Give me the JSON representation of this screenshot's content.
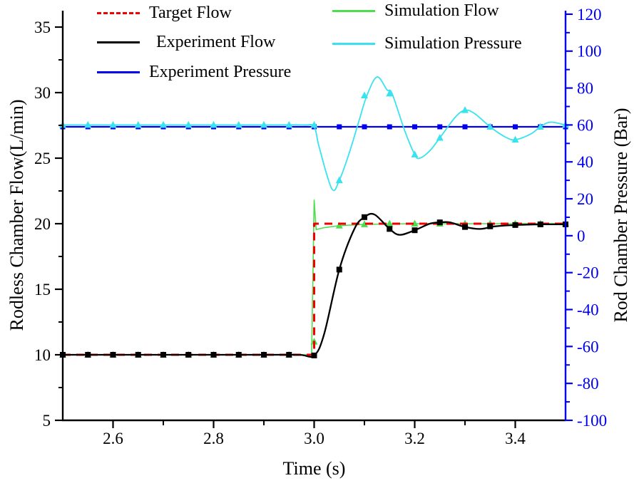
{
  "chart_data": {
    "type": "line",
    "title": "",
    "xlabel": "Time (s)",
    "ylabel_left": "Rodless Chamber Flow(L/min)",
    "ylabel_right": "Rod Chamber Pressure (Bar)",
    "grid": false,
    "legend_position": "top-inside",
    "x_axis": {
      "min": 2.5,
      "max": 3.5,
      "color": "#000000",
      "major_tick_values": [
        2.6,
        2.8,
        3.0,
        3.2,
        3.4
      ],
      "major_tick_labels": [
        "2.6",
        "2.8",
        "3.0",
        "3.2",
        "3.4"
      ],
      "minor_tick_values": [
        2.7,
        2.9,
        3.1,
        3.3
      ]
    },
    "flow_axis": {
      "min": 5,
      "max": 36.25,
      "ticks_min": 5,
      "ticks_max": 35,
      "color": "#000000",
      "major_tick_values": [
        5,
        10,
        15,
        20,
        25,
        30,
        35
      ],
      "major_tick_labels": [
        "5",
        "10",
        "15",
        "20",
        "25",
        "30",
        "35"
      ],
      "minor_tick_values": [
        7.5,
        12.5,
        17.5,
        22.5,
        27.5,
        32.5
      ]
    },
    "pressure_axis": {
      "min": -100,
      "max": 121.9,
      "ticks_min": -100,
      "ticks_max": 120,
      "color": "#0000f0",
      "major_tick_values": [
        120,
        100,
        80,
        60,
        40,
        20,
        0,
        -20,
        -40,
        -60,
        -80,
        -100
      ],
      "major_tick_labels": [
        "120",
        "100",
        "80",
        "60",
        "40",
        "20",
        "0",
        "-20",
        "-40",
        "-60",
        "-80",
        "-100"
      ],
      "minor_tick_values": [
        110,
        90,
        70,
        50,
        30,
        10,
        -10,
        -30,
        -50,
        -70,
        -90
      ]
    },
    "draw_order": [
      2,
      4,
      3,
      0,
      1
    ],
    "series": [
      {
        "name": "Target Flow",
        "axis": "flow",
        "color": "#f20000",
        "dash": true,
        "width": 3,
        "marker": "none",
        "smooth": false,
        "points": [
          [
            2.5,
            10
          ],
          [
            3.0,
            10
          ],
          [
            3.0,
            20
          ],
          [
            3.5,
            20
          ]
        ],
        "markers": []
      },
      {
        "name": "Experiment Flow",
        "axis": "flow",
        "color": "#000000",
        "dash": false,
        "width": 2.3,
        "marker": "square",
        "marker_size": 8,
        "smooth": true,
        "points": [
          [
            2.5,
            10
          ],
          [
            2.7,
            10
          ],
          [
            2.9,
            10
          ],
          [
            2.97,
            10
          ],
          [
            3.0,
            9.95
          ],
          [
            3.02,
            11.6
          ],
          [
            3.05,
            16.5
          ],
          [
            3.08,
            19.6
          ],
          [
            3.1,
            20.5
          ],
          [
            3.12,
            20.7
          ],
          [
            3.15,
            19.6
          ],
          [
            3.17,
            19.15
          ],
          [
            3.2,
            19.5
          ],
          [
            3.23,
            20.0
          ],
          [
            3.25,
            20.1
          ],
          [
            3.27,
            20.1
          ],
          [
            3.3,
            19.75
          ],
          [
            3.33,
            19.6
          ],
          [
            3.36,
            19.8
          ],
          [
            3.4,
            19.9
          ],
          [
            3.45,
            19.95
          ],
          [
            3.5,
            19.95
          ]
        ],
        "markers": [
          [
            2.5,
            10
          ],
          [
            2.55,
            10
          ],
          [
            2.6,
            10
          ],
          [
            2.65,
            10
          ],
          [
            2.7,
            10
          ],
          [
            2.75,
            10
          ],
          [
            2.8,
            10
          ],
          [
            2.85,
            10
          ],
          [
            2.9,
            10
          ],
          [
            2.95,
            10
          ],
          [
            3.0,
            9.95
          ],
          [
            3.05,
            16.5
          ],
          [
            3.1,
            20.5
          ],
          [
            3.15,
            19.6
          ],
          [
            3.2,
            19.5
          ],
          [
            3.25,
            20.1
          ],
          [
            3.3,
            19.75
          ],
          [
            3.35,
            19.8
          ],
          [
            3.4,
            19.9
          ],
          [
            3.45,
            19.95
          ],
          [
            3.5,
            19.95
          ]
        ]
      },
      {
        "name": "Experiment Pressure",
        "axis": "pressure",
        "color": "#0000f0",
        "dash": false,
        "width": 2.3,
        "marker": "square",
        "marker_size": 7,
        "smooth": false,
        "points": [
          [
            2.5,
            59
          ],
          [
            3.5,
            59
          ]
        ],
        "markers": [
          [
            2.5,
            59
          ],
          [
            2.55,
            59
          ],
          [
            2.6,
            59
          ],
          [
            2.65,
            59
          ],
          [
            2.7,
            59
          ],
          [
            2.75,
            59
          ],
          [
            2.8,
            59
          ],
          [
            2.85,
            59
          ],
          [
            2.9,
            59
          ],
          [
            2.95,
            59
          ],
          [
            3.0,
            59
          ],
          [
            3.05,
            59
          ],
          [
            3.1,
            59
          ],
          [
            3.15,
            59
          ],
          [
            3.2,
            59
          ],
          [
            3.25,
            59
          ],
          [
            3.3,
            59
          ],
          [
            3.35,
            59
          ],
          [
            3.4,
            59
          ],
          [
            3.45,
            59
          ],
          [
            3.5,
            59
          ]
        ]
      },
      {
        "name": "Simulation Flow",
        "axis": "flow",
        "color": "#4ddd4d",
        "dash": false,
        "width": 1.6,
        "marker": "triangle",
        "marker_size": 10,
        "smooth": false,
        "points": [
          [
            2.5,
            10
          ],
          [
            2.995,
            10
          ],
          [
            3.0,
            21.8
          ],
          [
            3.004,
            19.55
          ],
          [
            3.02,
            19.7
          ],
          [
            3.05,
            19.85
          ],
          [
            3.1,
            19.95
          ],
          [
            3.15,
            19.98
          ],
          [
            3.2,
            20
          ],
          [
            3.5,
            20
          ]
        ],
        "markers": [
          [
            2.5,
            10
          ],
          [
            2.55,
            10
          ],
          [
            2.6,
            10
          ],
          [
            2.65,
            10
          ],
          [
            2.7,
            10
          ],
          [
            2.75,
            10
          ],
          [
            2.8,
            10
          ],
          [
            2.85,
            10
          ],
          [
            2.9,
            10
          ],
          [
            2.95,
            10
          ],
          [
            3.0,
            11
          ],
          [
            3.05,
            19.85
          ],
          [
            3.1,
            19.95
          ],
          [
            3.15,
            20
          ],
          [
            3.2,
            20
          ],
          [
            3.25,
            20
          ],
          [
            3.3,
            20
          ],
          [
            3.35,
            20
          ],
          [
            3.4,
            20
          ],
          [
            3.45,
            20
          ],
          [
            3.5,
            20
          ]
        ]
      },
      {
        "name": "Simulation Pressure",
        "axis": "pressure",
        "color": "#38e3ef",
        "dash": false,
        "width": 1.8,
        "marker": "triangle",
        "marker_size": 10,
        "smooth": true,
        "points": [
          [
            2.5,
            60
          ],
          [
            2.7,
            60
          ],
          [
            2.9,
            60
          ],
          [
            2.98,
            60
          ],
          [
            3.0,
            59
          ],
          [
            3.01,
            48
          ],
          [
            3.035,
            25.5
          ],
          [
            3.05,
            30
          ],
          [
            3.07,
            45
          ],
          [
            3.09,
            63
          ],
          [
            3.105,
            76
          ],
          [
            3.125,
            86
          ],
          [
            3.145,
            79
          ],
          [
            3.155,
            77
          ],
          [
            3.18,
            57
          ],
          [
            3.2,
            44
          ],
          [
            3.21,
            42
          ],
          [
            3.23,
            46
          ],
          [
            3.25,
            53
          ],
          [
            3.28,
            64
          ],
          [
            3.3,
            68
          ],
          [
            3.32,
            66
          ],
          [
            3.35,
            59
          ],
          [
            3.38,
            53.5
          ],
          [
            3.4,
            52
          ],
          [
            3.43,
            55
          ],
          [
            3.45,
            59
          ],
          [
            3.47,
            61.5
          ],
          [
            3.5,
            60
          ]
        ],
        "markers": [
          [
            2.5,
            60
          ],
          [
            2.55,
            60
          ],
          [
            2.6,
            60
          ],
          [
            2.65,
            60
          ],
          [
            2.7,
            60
          ],
          [
            2.75,
            60
          ],
          [
            2.8,
            60
          ],
          [
            2.85,
            60
          ],
          [
            2.9,
            60
          ],
          [
            2.95,
            60
          ],
          [
            3.0,
            60
          ],
          [
            3.05,
            30
          ],
          [
            3.1,
            76
          ],
          [
            3.15,
            77
          ],
          [
            3.2,
            44
          ],
          [
            3.25,
            53
          ],
          [
            3.3,
            68
          ],
          [
            3.35,
            59
          ],
          [
            3.4,
            52
          ],
          [
            3.45,
            59
          ],
          [
            3.5,
            60
          ]
        ]
      }
    ]
  }
}
